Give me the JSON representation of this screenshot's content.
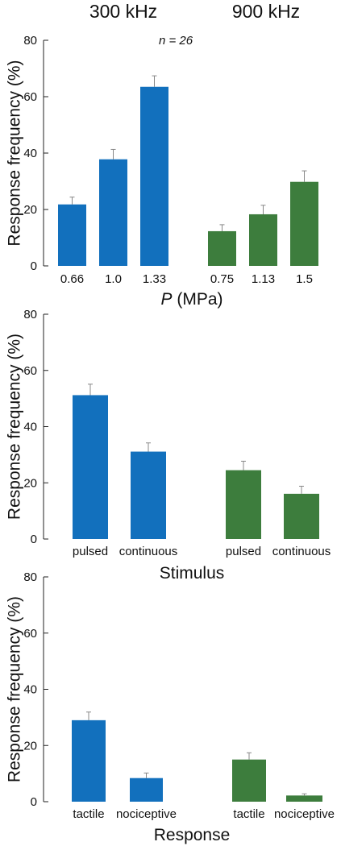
{
  "header": {
    "group_labels": [
      "300 kHz",
      "900 kHz"
    ]
  },
  "chart_data": [
    {
      "type": "bar",
      "annotation": "n = 26",
      "ylabel": "Response frequency (%)",
      "xlabel_italic": "P",
      "xlabel_unit": " (MPa)",
      "ylim": [
        0,
        80
      ],
      "yticks": [
        "0",
        "20",
        "40",
        "60",
        "80"
      ],
      "groups": [
        {
          "name": "300 kHz",
          "color": "#1270bd",
          "categories": [
            "0.66",
            "1.0",
            "1.33"
          ],
          "values": [
            21.8,
            37.8,
            63.5
          ],
          "errors": [
            2.6,
            3.5,
            3.9
          ]
        },
        {
          "name": "900 kHz",
          "color": "#3d7d3d",
          "categories": [
            "0.75",
            "1.13",
            "1.5"
          ],
          "values": [
            12.3,
            18.3,
            29.8
          ],
          "errors": [
            2.3,
            3.2,
            3.9
          ]
        }
      ]
    },
    {
      "type": "bar",
      "ylabel": "Response frequency (%)",
      "xlabel": "Stimulus",
      "ylim": [
        0,
        80
      ],
      "yticks": [
        "0",
        "20",
        "40",
        "60",
        "80"
      ],
      "groups": [
        {
          "name": "300 kHz",
          "color": "#1270bd",
          "categories": [
            "pulsed",
            "continuous"
          ],
          "values": [
            51.2,
            31.1
          ],
          "errors": [
            3.9,
            3.1
          ]
        },
        {
          "name": "900 kHz",
          "color": "#3d7d3d",
          "categories": [
            "pulsed",
            "continuous"
          ],
          "values": [
            24.5,
            16.1
          ],
          "errors": [
            3.2,
            2.7
          ]
        }
      ]
    },
    {
      "type": "bar",
      "ylabel": "Response frequency (%)",
      "xlabel": "Response",
      "ylim": [
        0,
        80
      ],
      "yticks": [
        "0",
        "20",
        "40",
        "60",
        "80"
      ],
      "groups": [
        {
          "name": "300 kHz",
          "color": "#1270bd",
          "categories": [
            "tactile",
            "nociceptive"
          ],
          "values": [
            29.0,
            8.4
          ],
          "errors": [
            2.9,
            1.8
          ]
        },
        {
          "name": "900 kHz",
          "color": "#3d7d3d",
          "categories": [
            "tactile",
            "nociceptive"
          ],
          "values": [
            15.0,
            2.2
          ],
          "errors": [
            2.4,
            0.6
          ]
        }
      ]
    }
  ]
}
